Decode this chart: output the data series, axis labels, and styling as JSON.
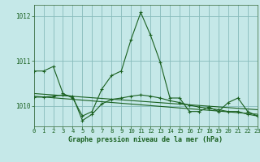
{
  "background_color": "#c5e8e8",
  "grid_color": "#88bbbb",
  "line_color": "#1a6020",
  "title": "Graphe pression niveau de la mer (hPa)",
  "xlim": [
    0,
    23
  ],
  "ylim": [
    1009.55,
    1012.25
  ],
  "yticks": [
    1010,
    1011,
    1012
  ],
  "xticks": [
    0,
    1,
    2,
    3,
    4,
    5,
    6,
    7,
    8,
    9,
    10,
    11,
    12,
    13,
    14,
    15,
    16,
    17,
    18,
    19,
    20,
    21,
    22,
    23
  ],
  "series1_x": [
    0,
    1,
    2,
    3,
    4,
    5,
    6,
    7,
    8,
    9,
    10,
    11,
    12,
    13,
    14,
    15,
    16,
    17,
    18,
    19,
    20,
    21,
    22,
    23
  ],
  "series1_y": [
    1010.78,
    1010.78,
    1010.88,
    1010.28,
    1010.18,
    1009.78,
    1009.88,
    1010.38,
    1010.68,
    1010.78,
    1011.48,
    1012.08,
    1011.58,
    1010.98,
    1010.18,
    1010.18,
    1009.88,
    1009.88,
    1009.98,
    1009.88,
    1010.08,
    1010.18,
    1009.88,
    1009.78
  ],
  "series2_x": [
    0,
    1,
    2,
    3,
    4,
    5,
    6,
    7,
    8,
    9,
    10,
    11,
    12,
    13,
    14,
    15,
    16,
    17,
    18,
    19,
    20,
    21,
    22,
    23
  ],
  "series2_y": [
    1010.2,
    1010.2,
    1010.22,
    1010.25,
    1010.22,
    1009.68,
    1009.82,
    1010.05,
    1010.15,
    1010.18,
    1010.22,
    1010.25,
    1010.22,
    1010.18,
    1010.12,
    1010.08,
    1010.02,
    1009.98,
    1009.95,
    1009.92,
    1009.88,
    1009.88,
    1009.82,
    1009.78
  ],
  "trend1_x": [
    0,
    23
  ],
  "trend1_y": [
    1010.28,
    1009.92
  ],
  "trend2_x": [
    0,
    23
  ],
  "trend2_y": [
    1010.22,
    1009.82
  ]
}
